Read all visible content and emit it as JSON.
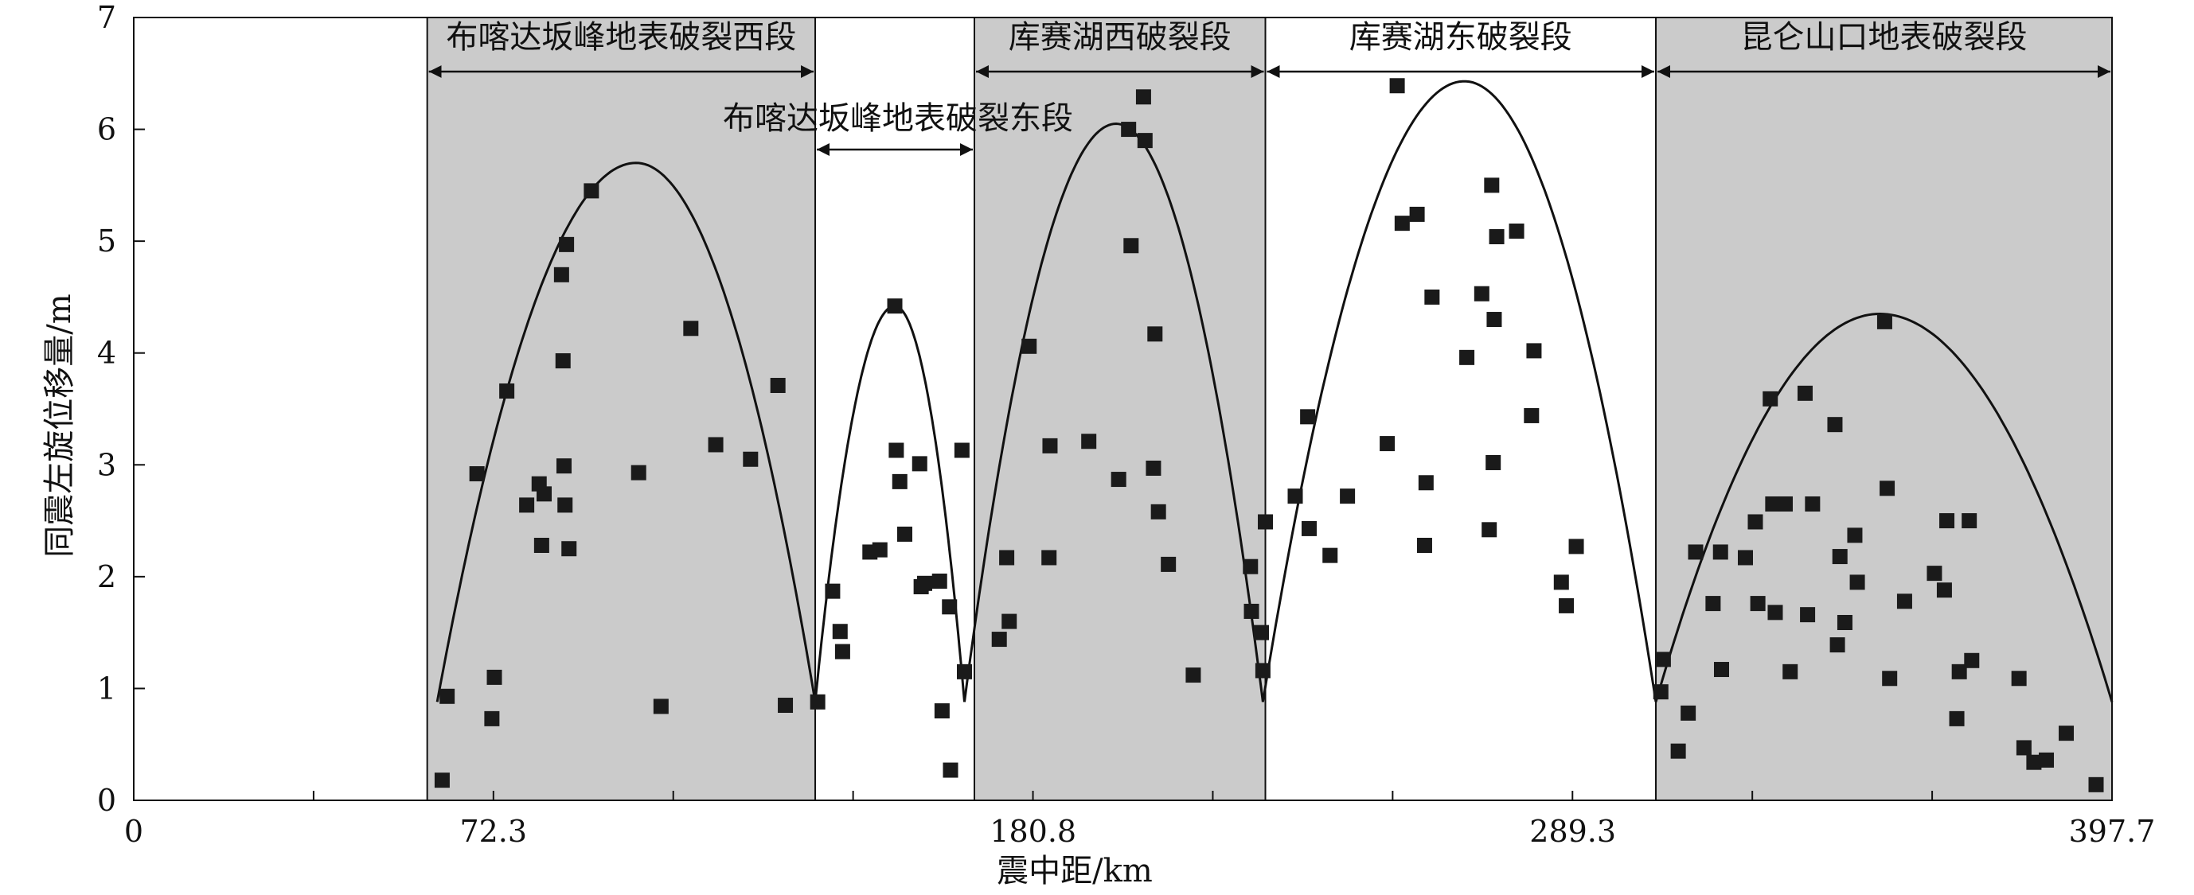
{
  "chart_data": {
    "type": "scatter",
    "title": "",
    "xlabel": "震中距/km",
    "ylabel": "同震左旋位移量/m",
    "xlim": [
      0,
      397.7
    ],
    "ylim": [
      0,
      7
    ],
    "x_tick_labels": [
      "0",
      "72.3",
      "180.8",
      "289.3",
      "397.7"
    ],
    "y_tick_labels": [
      "0",
      "1",
      "2",
      "3",
      "4",
      "5",
      "6",
      "7"
    ],
    "grid": false,
    "segments": [
      {
        "label": "布喀达坂峰地表破裂西段",
        "x_range": [
          59,
          137
        ],
        "shaded": true
      },
      {
        "label": "布喀达坂峰地表破裂东段",
        "x_range": [
          137,
          169
        ],
        "shaded": false
      },
      {
        "label": "库赛湖西破裂段",
        "x_range": [
          169,
          227.5
        ],
        "shaded": true
      },
      {
        "label": "库赛湖东破裂段",
        "x_range": [
          227.5,
          306
        ],
        "shaded": false
      },
      {
        "label": "昆仑山口地表破裂段",
        "x_range": [
          306,
          397.7
        ],
        "shaded": true
      }
    ],
    "envelope_peaks": [
      {
        "x_range": [
          61,
          137
        ],
        "peak_x": 101,
        "peak_y": 5.7
      },
      {
        "x_range": [
          137,
          167
        ],
        "peak_x": 153,
        "peak_y": 4.42
      },
      {
        "x_range": [
          167,
          227
        ],
        "peak_x": 197.5,
        "peak_y": 6.05
      },
      {
        "x_range": [
          227,
          306
        ],
        "peak_x": 267.5,
        "peak_y": 6.43
      },
      {
        "x_range": [
          306,
          397.7
        ],
        "peak_x": 351,
        "peak_y": 4.35
      }
    ],
    "points": [
      [
        62,
        0.18
      ],
      [
        63,
        0.93
      ],
      [
        69,
        2.92
      ],
      [
        72,
        0.73
      ],
      [
        72.5,
        1.1
      ],
      [
        75,
        3.66
      ],
      [
        79,
        2.64
      ],
      [
        81.5,
        2.83
      ],
      [
        82,
        2.28
      ],
      [
        82.5,
        2.74
      ],
      [
        86,
        4.7
      ],
      [
        86.3,
        3.93
      ],
      [
        86.5,
        2.99
      ],
      [
        86.7,
        2.64
      ],
      [
        87,
        4.97
      ],
      [
        87.5,
        2.25
      ],
      [
        92,
        5.45
      ],
      [
        101.5,
        2.93
      ],
      [
        106,
        0.84
      ],
      [
        112,
        4.22
      ],
      [
        117,
        3.18
      ],
      [
        124,
        3.05
      ],
      [
        129.5,
        3.71
      ],
      [
        131,
        0.85
      ],
      [
        137.5,
        0.88
      ],
      [
        140.5,
        1.87
      ],
      [
        142,
        1.51
      ],
      [
        142.5,
        1.33
      ],
      [
        148,
        2.22
      ],
      [
        150,
        2.24
      ],
      [
        153,
        4.42
      ],
      [
        153.3,
        3.13
      ],
      [
        154,
        2.85
      ],
      [
        155,
        2.38
      ],
      [
        158,
        3.01
      ],
      [
        158.3,
        1.91
      ],
      [
        159,
        1.94
      ],
      [
        162,
        1.96
      ],
      [
        162.5,
        0.8
      ],
      [
        164,
        1.73
      ],
      [
        164.2,
        0.27
      ],
      [
        166.5,
        3.13
      ],
      [
        167,
        1.15
      ],
      [
        174,
        1.44
      ],
      [
        175.5,
        2.17
      ],
      [
        176,
        1.6
      ],
      [
        180,
        4.06
      ],
      [
        184,
        2.17
      ],
      [
        184.2,
        3.17
      ],
      [
        192,
        3.21
      ],
      [
        198,
        2.87
      ],
      [
        200,
        6.0
      ],
      [
        200.5,
        4.96
      ],
      [
        203,
        6.29
      ],
      [
        203.3,
        5.9
      ],
      [
        205,
        2.97
      ],
      [
        205.3,
        4.17
      ],
      [
        206,
        2.58
      ],
      [
        208,
        2.11
      ],
      [
        213,
        1.12
      ],
      [
        224.5,
        2.09
      ],
      [
        224.7,
        1.69
      ],
      [
        226.7,
        1.5
      ],
      [
        227,
        1.16
      ],
      [
        227.5,
        2.49
      ],
      [
        233.5,
        2.72
      ],
      [
        236,
        3.43
      ],
      [
        236.3,
        2.43
      ],
      [
        240.5,
        2.19
      ],
      [
        244,
        2.72
      ],
      [
        252,
        3.19
      ],
      [
        254,
        6.39
      ],
      [
        255,
        5.16
      ],
      [
        258,
        5.24
      ],
      [
        259.5,
        2.28
      ],
      [
        259.8,
        2.84
      ],
      [
        261,
        4.5
      ],
      [
        268,
        3.96
      ],
      [
        271,
        4.53
      ],
      [
        272.5,
        2.42
      ],
      [
        273,
        5.5
      ],
      [
        273.3,
        3.02
      ],
      [
        273.5,
        4.3
      ],
      [
        274,
        5.04
      ],
      [
        278,
        5.09
      ],
      [
        281,
        3.44
      ],
      [
        281.5,
        4.02
      ],
      [
        287,
        1.95
      ],
      [
        288,
        1.74
      ],
      [
        290,
        2.27
      ],
      [
        307,
        0.97
      ],
      [
        307.5,
        1.26
      ],
      [
        310.5,
        0.44
      ],
      [
        312.5,
        0.78
      ],
      [
        314,
        2.22
      ],
      [
        317.5,
        1.76
      ],
      [
        319,
        2.22
      ],
      [
        319.2,
        1.17
      ],
      [
        324,
        2.17
      ],
      [
        326,
        2.49
      ],
      [
        326.5,
        1.76
      ],
      [
        329,
        3.59
      ],
      [
        329.5,
        2.65
      ],
      [
        330,
        1.68
      ],
      [
        332,
        2.65
      ],
      [
        333,
        1.15
      ],
      [
        336,
        3.64
      ],
      [
        336.5,
        1.66
      ],
      [
        337.5,
        2.65
      ],
      [
        342,
        3.36
      ],
      [
        342.5,
        1.39
      ],
      [
        343,
        2.18
      ],
      [
        344,
        1.59
      ],
      [
        346,
        2.37
      ],
      [
        346.5,
        1.95
      ],
      [
        352,
        4.28
      ],
      [
        352.5,
        2.79
      ],
      [
        353,
        1.09
      ],
      [
        356,
        1.78
      ],
      [
        362,
        2.03
      ],
      [
        364,
        1.88
      ],
      [
        364.5,
        2.5
      ],
      [
        366.5,
        0.73
      ],
      [
        367,
        1.15
      ],
      [
        369,
        2.5
      ],
      [
        369.5,
        1.25
      ],
      [
        379,
        1.09
      ],
      [
        380,
        0.47
      ],
      [
        382,
        0.34
      ],
      [
        384.5,
        0.36
      ],
      [
        388.5,
        0.6
      ],
      [
        394.5,
        0.14
      ]
    ]
  }
}
